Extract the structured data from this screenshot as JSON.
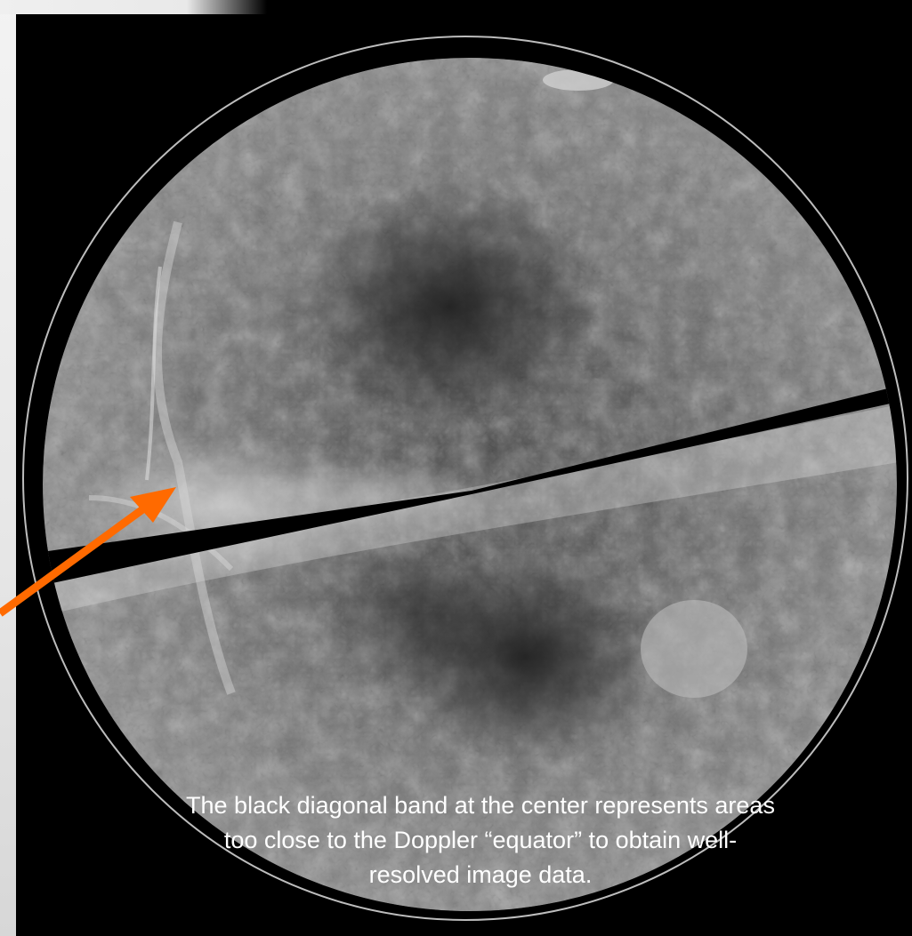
{
  "caption": {
    "line1": "The black diagonal band at the center represents areas",
    "line2": "too close to the Doppler “equator” to obtain well-",
    "line3": "resolved image data."
  },
  "colors": {
    "background": "#000000",
    "arrow": "#ff6a00",
    "caption_text": "#ffffff"
  },
  "icons": {
    "pointer": "arrow-icon"
  }
}
